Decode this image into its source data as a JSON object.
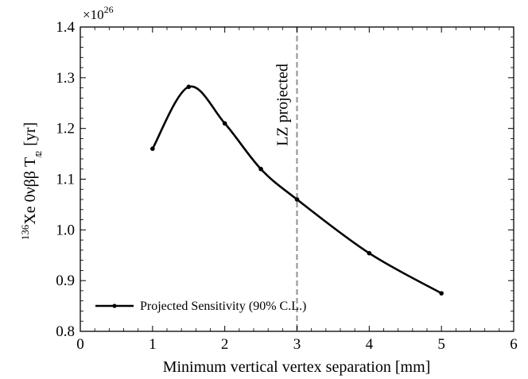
{
  "chart_data": {
    "type": "line",
    "title": "",
    "xlabel": "Minimum vertical vertex separation [mm]",
    "ylabel": {
      "isotope_mass": "136",
      "main": "Xe 0νββ T",
      "sub_num": "1",
      "sub_den": "2",
      "unit": "[yr]"
    },
    "y_scale_factor": "×10",
    "y_scale_exponent": "26",
    "xlim": [
      0,
      6
    ],
    "ylim": [
      0.8,
      1.4
    ],
    "x_ticks": [
      "0",
      "1",
      "2",
      "3",
      "4",
      "5",
      "6"
    ],
    "y_ticks": [
      "0.8",
      "0.9",
      "1.0",
      "1.1",
      "1.2",
      "1.3",
      "1.4"
    ],
    "grid": false,
    "legend_position": "lower-left",
    "series": [
      {
        "name": "Projected Sensitivity (90% C.L.)",
        "color": "#000000",
        "x": [
          1.0,
          1.5,
          2.0,
          2.5,
          3.0,
          4.0,
          5.0
        ],
        "y": [
          1.16,
          1.282,
          1.21,
          1.12,
          1.06,
          0.954,
          0.875
        ]
      }
    ],
    "reference_line": {
      "x": 3.0,
      "label": "LZ projected",
      "color": "#999999",
      "style": "dashed"
    }
  }
}
